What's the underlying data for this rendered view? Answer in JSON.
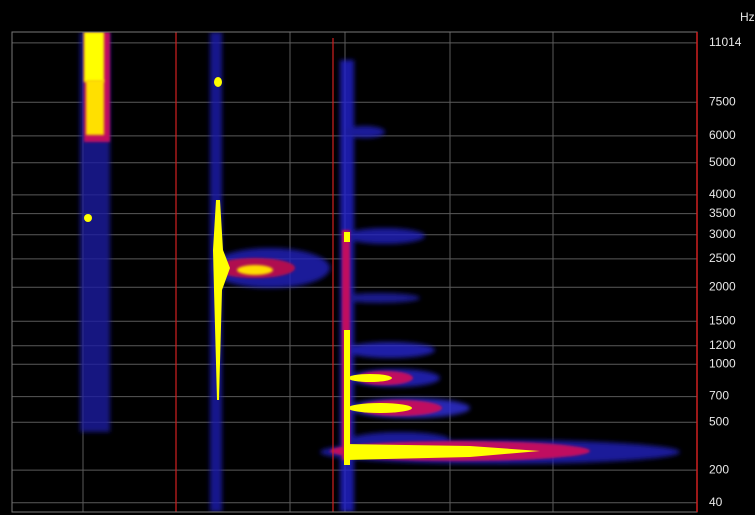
{
  "chart_data": {
    "type": "spectrogram",
    "y_label": "Hz",
    "yscale": "mel",
    "ylim": [
      0,
      11800
    ],
    "yticks": [
      11014,
      7500,
      6000,
      5000,
      4000,
      3500,
      3000,
      2500,
      2000,
      1500,
      1200,
      1000,
      700,
      500,
      200,
      40
    ],
    "grid": true
  }
}
